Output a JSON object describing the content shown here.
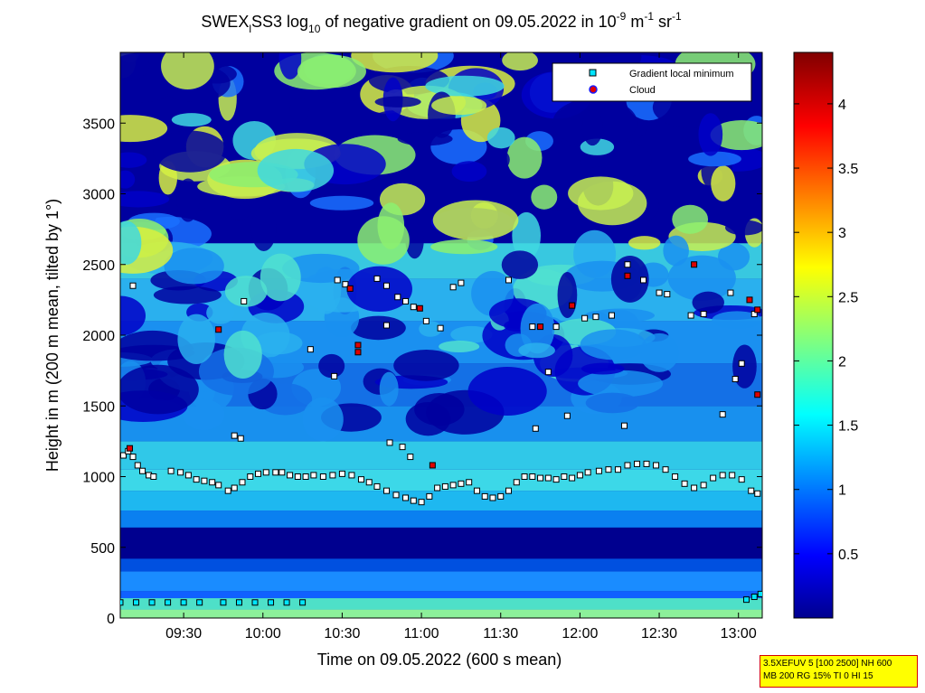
{
  "chart_data": {
    "type": "heatmap",
    "title": {
      "prefix": "SWEX",
      "sub": "l",
      "mid": "SS3 log",
      "log_sub": "10",
      "main": " of negative gradient on 09.05.2022 in 10",
      "exp1": "-9",
      "unit1": " m",
      "exp2": "-1",
      "unit2": " sr",
      "exp3": "-1"
    },
    "xlabel": "Time on 09.05.2022 (600 s mean)",
    "ylabel": "Height in m (200 m mean, tilted by 1°)",
    "x_range_hours": [
      9.1,
      13.15
    ],
    "x_ticks": [
      {
        "label": "09:30",
        "value": 9.5
      },
      {
        "label": "10:00",
        "value": 10.0
      },
      {
        "label": "10:30",
        "value": 10.5
      },
      {
        "label": "11:00",
        "value": 11.0
      },
      {
        "label": "11:30",
        "value": 11.5
      },
      {
        "label": "12:00",
        "value": 12.0
      },
      {
        "label": "12:30",
        "value": 12.5
      },
      {
        "label": "13:00",
        "value": 13.0
      }
    ],
    "y_range": [
      0,
      4000
    ],
    "y_ticks": [
      {
        "label": "0",
        "value": 0
      },
      {
        "label": "500",
        "value": 500
      },
      {
        "label": "1000",
        "value": 1000
      },
      {
        "label": "1500",
        "value": 1500
      },
      {
        "label": "2000",
        "value": 2000
      },
      {
        "label": "2500",
        "value": 2500
      },
      {
        "label": "3000",
        "value": 3000
      },
      {
        "label": "3500",
        "value": 3500
      }
    ],
    "colorbar_range": [
      0,
      4.4
    ],
    "colorbar_ticks": [
      {
        "label": "0.5",
        "value": 0.5
      },
      {
        "label": "1",
        "value": 1
      },
      {
        "label": "1.5",
        "value": 1.5
      },
      {
        "label": "2",
        "value": 2
      },
      {
        "label": "2.5",
        "value": 2.5
      },
      {
        "label": "3",
        "value": 3
      },
      {
        "label": "3.5",
        "value": 3.5
      },
      {
        "label": "4",
        "value": 4
      }
    ],
    "legend": {
      "placement": "top-right",
      "entries": [
        {
          "label": "Gradient local minimum",
          "marker": "square",
          "color": "#00e5ff"
        },
        {
          "label": "Cloud",
          "marker": "circle",
          "color": "#e00000"
        }
      ]
    },
    "series": [
      {
        "name": "Gradient local minimum",
        "marker_color": "#00e5ff",
        "points": [
          [
            9.12,
            1150
          ],
          [
            9.15,
            1180
          ],
          [
            9.18,
            1140
          ],
          [
            9.21,
            1080
          ],
          [
            9.24,
            1040
          ],
          [
            9.28,
            1010
          ],
          [
            9.31,
            1000
          ],
          [
            9.42,
            1040
          ],
          [
            9.48,
            1030
          ],
          [
            9.53,
            1010
          ],
          [
            9.58,
            980
          ],
          [
            9.63,
            970
          ],
          [
            9.68,
            960
          ],
          [
            9.72,
            940
          ],
          [
            9.78,
            900
          ],
          [
            9.82,
            920
          ],
          [
            9.87,
            960
          ],
          [
            9.92,
            1000
          ],
          [
            9.97,
            1020
          ],
          [
            10.02,
            1030
          ],
          [
            10.08,
            1030
          ],
          [
            10.12,
            1030
          ],
          [
            10.17,
            1010
          ],
          [
            10.22,
            1000
          ],
          [
            10.27,
            1000
          ],
          [
            10.32,
            1010
          ],
          [
            10.38,
            1000
          ],
          [
            10.44,
            1010
          ],
          [
            10.5,
            1020
          ],
          [
            10.56,
            1010
          ],
          [
            10.62,
            980
          ],
          [
            10.67,
            960
          ],
          [
            10.72,
            930
          ],
          [
            10.78,
            900
          ],
          [
            10.84,
            870
          ],
          [
            10.9,
            850
          ],
          [
            10.95,
            830
          ],
          [
            11.0,
            820
          ],
          [
            11.05,
            860
          ],
          [
            11.1,
            920
          ],
          [
            11.15,
            930
          ],
          [
            11.2,
            940
          ],
          [
            11.25,
            950
          ],
          [
            11.3,
            960
          ],
          [
            11.35,
            900
          ],
          [
            11.4,
            860
          ],
          [
            11.45,
            850
          ],
          [
            11.5,
            860
          ],
          [
            11.55,
            900
          ],
          [
            11.6,
            960
          ],
          [
            11.65,
            1000
          ],
          [
            11.7,
            1000
          ],
          [
            11.75,
            990
          ],
          [
            11.8,
            990
          ],
          [
            11.85,
            980
          ],
          [
            11.9,
            1000
          ],
          [
            11.95,
            990
          ],
          [
            12.0,
            1010
          ],
          [
            12.05,
            1030
          ],
          [
            12.12,
            1040
          ],
          [
            12.18,
            1050
          ],
          [
            12.24,
            1050
          ],
          [
            12.3,
            1080
          ],
          [
            12.36,
            1090
          ],
          [
            12.42,
            1090
          ],
          [
            12.48,
            1080
          ],
          [
            12.54,
            1050
          ],
          [
            12.6,
            1000
          ],
          [
            12.66,
            950
          ],
          [
            12.72,
            920
          ],
          [
            12.78,
            940
          ],
          [
            12.84,
            990
          ],
          [
            12.9,
            1010
          ],
          [
            12.96,
            1010
          ],
          [
            13.02,
            980
          ],
          [
            13.08,
            900
          ],
          [
            13.12,
            880
          ],
          [
            9.1,
            110
          ],
          [
            9.2,
            110
          ],
          [
            9.3,
            110
          ],
          [
            9.4,
            110
          ],
          [
            9.5,
            110
          ],
          [
            9.6,
            110
          ],
          [
            9.75,
            110
          ],
          [
            9.85,
            110
          ],
          [
            9.95,
            110
          ],
          [
            10.05,
            110
          ],
          [
            10.15,
            110
          ],
          [
            10.25,
            110
          ],
          [
            13.05,
            130
          ],
          [
            13.1,
            150
          ],
          [
            13.14,
            170
          ],
          [
            9.18,
            2350
          ],
          [
            9.88,
            2240
          ],
          [
            10.47,
            2390
          ],
          [
            10.52,
            2360
          ],
          [
            10.72,
            2400
          ],
          [
            10.78,
            2350
          ],
          [
            10.85,
            2270
          ],
          [
            10.9,
            2240
          ],
          [
            10.95,
            2200
          ],
          [
            11.03,
            2100
          ],
          [
            11.12,
            2050
          ],
          [
            11.2,
            2340
          ],
          [
            11.25,
            2370
          ],
          [
            11.55,
            2390
          ],
          [
            11.7,
            2060
          ],
          [
            11.85,
            2060
          ],
          [
            12.03,
            2120
          ],
          [
            12.1,
            2130
          ],
          [
            12.2,
            2140
          ],
          [
            12.3,
            2500
          ],
          [
            12.4,
            2390
          ],
          [
            12.5,
            2300
          ],
          [
            12.55,
            2290
          ],
          [
            12.7,
            2140
          ],
          [
            12.78,
            2150
          ],
          [
            12.95,
            2300
          ],
          [
            13.1,
            2150
          ],
          [
            10.45,
            1710
          ],
          [
            10.78,
            2070
          ],
          [
            10.8,
            1240
          ],
          [
            10.88,
            1210
          ],
          [
            10.93,
            1140
          ],
          [
            11.8,
            1740
          ],
          [
            11.92,
            1430
          ],
          [
            12.28,
            1360
          ],
          [
            12.9,
            1440
          ],
          [
            12.98,
            1690
          ],
          [
            13.02,
            1800
          ],
          [
            10.3,
            1900
          ],
          [
            9.82,
            1290
          ],
          [
            9.86,
            1270
          ],
          [
            11.72,
            1340
          ]
        ]
      },
      {
        "name": "Cloud",
        "marker_color": "#e00000",
        "points": [
          [
            9.16,
            1200
          ],
          [
            9.72,
            2040
          ],
          [
            10.55,
            2330
          ],
          [
            10.6,
            1930
          ],
          [
            10.6,
            1880
          ],
          [
            10.99,
            2190
          ],
          [
            11.07,
            1080
          ],
          [
            11.95,
            2210
          ],
          [
            11.75,
            2060
          ],
          [
            12.3,
            2420
          ],
          [
            12.72,
            2500
          ],
          [
            13.07,
            2250
          ],
          [
            13.12,
            2180
          ],
          [
            13.12,
            1580
          ]
        ]
      }
    ]
  },
  "info_box": {
    "line1": "3.5XEFUV 5 [100 2500] NH 600",
    "line2": "MB 200 RG 15% TI 0 HI 15"
  }
}
